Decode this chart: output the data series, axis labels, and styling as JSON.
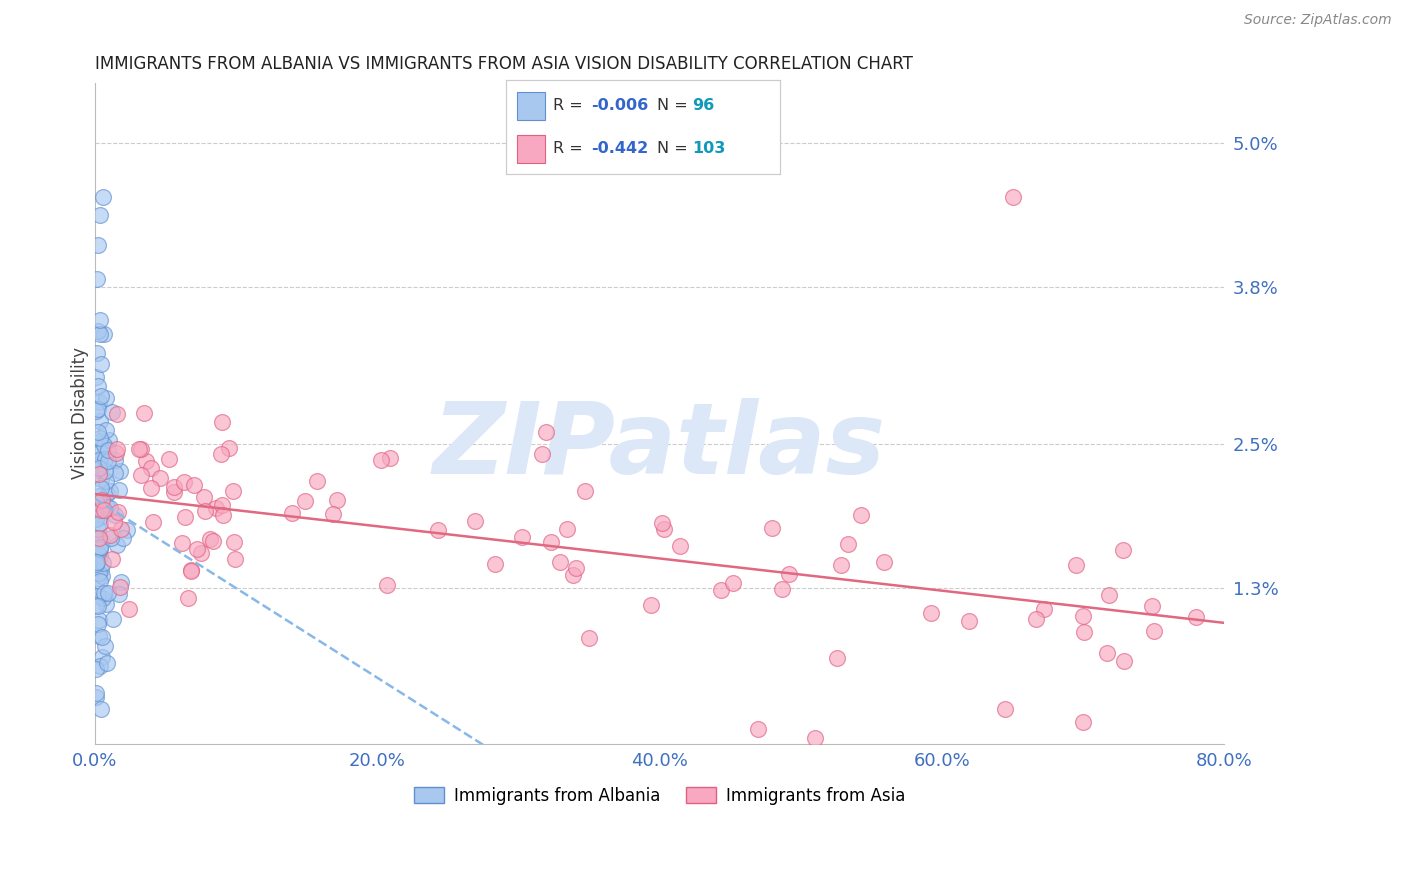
{
  "title": "IMMIGRANTS FROM ALBANIA VS IMMIGRANTS FROM ASIA VISION DISABILITY CORRELATION CHART",
  "source": "Source: ZipAtlas.com",
  "ylabel": "Vision Disability",
  "xlim": [
    0.0,
    80.0
  ],
  "ylim": [
    0.0,
    5.5
  ],
  "yticks": [
    1.3,
    2.5,
    3.8,
    5.0
  ],
  "xticks": [
    0.0,
    20.0,
    40.0,
    60.0,
    80.0
  ],
  "albania_color": "#a8c8f0",
  "albania_edge": "#6090d0",
  "asia_color": "#f8a8c0",
  "asia_edge": "#e06080",
  "trend_albania_color": "#88b8e8",
  "trend_asia_color": "#e06880",
  "background_color": "#ffffff",
  "grid_color": "#cccccc",
  "axis_color": "#bbbbbb",
  "tick_color": "#4070c0",
  "title_color": "#222222",
  "watermark": "ZIPatlas",
  "watermark_color": "#dce8f8",
  "legend_R1": "-0.006",
  "legend_N1": "96",
  "legend_R2": "-0.442",
  "legend_N2": "103",
  "legend_label1": "Immigrants from Albania",
  "legend_label2": "Immigrants from Asia"
}
